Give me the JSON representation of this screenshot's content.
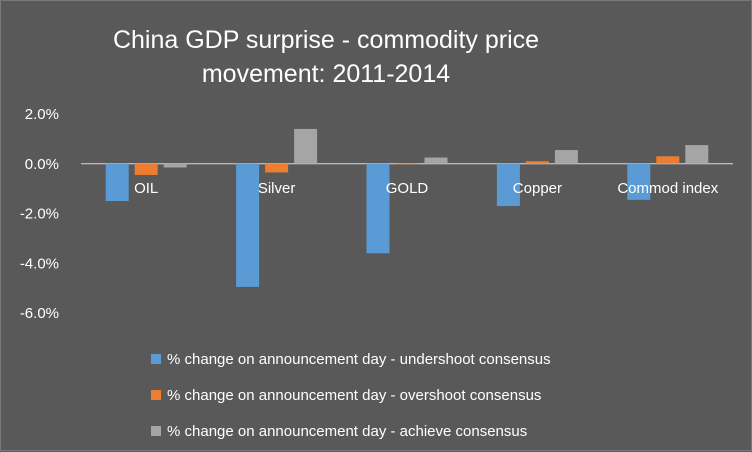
{
  "chart_data": {
    "type": "bar",
    "title_lines": [
      "China GDP surprise - commodity price",
      "movement: 2011-2014"
    ],
    "xlabel": "",
    "ylabel": "",
    "categories": [
      "OIL",
      "Silver",
      "GOLD",
      "Copper",
      "Commod index"
    ],
    "series": [
      {
        "name": "% change  on announcement day - undershoot consensus",
        "color": "#5b9bd5",
        "values": [
          -1.5,
          -4.95,
          -3.6,
          -1.7,
          -1.45
        ]
      },
      {
        "name": "% change on announcement day - overshoot consensus",
        "color": "#ed7d31",
        "values": [
          -0.45,
          -0.35,
          0.0,
          0.1,
          0.3
        ]
      },
      {
        "name": "% change on announcement day - achieve consensus",
        "color": "#a5a5a5",
        "values": [
          -0.15,
          1.4,
          0.25,
          0.55,
          0.75
        ]
      }
    ],
    "ylim": [
      -6.0,
      2.0
    ],
    "yticks": [
      2.0,
      0.0,
      -2.0,
      -4.0,
      -6.0
    ],
    "ytick_labels": [
      "2.0%",
      "0.0%",
      "-2.0%",
      "-4.0%",
      "-6.0%"
    ],
    "grid": false,
    "legend_position": "bottom"
  }
}
